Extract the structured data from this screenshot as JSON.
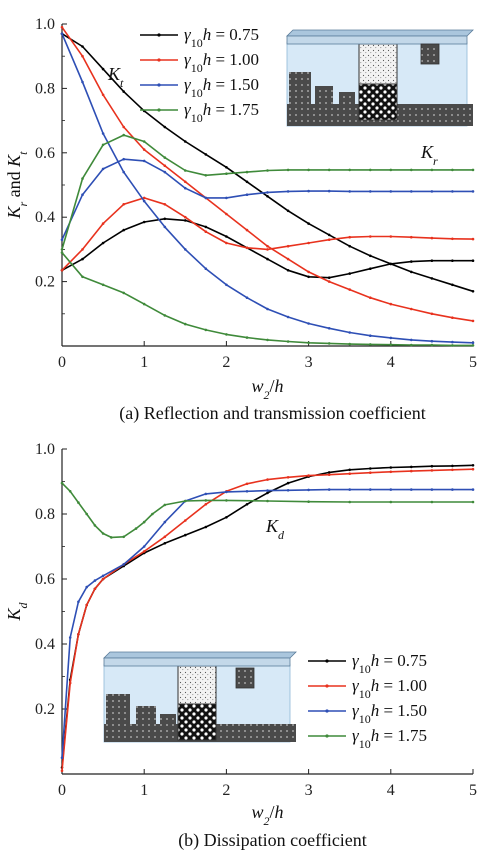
{
  "chart_data": [
    {
      "type": "line",
      "caption": "(a) Reflection and transmission coefficient",
      "xlabel": "w2/h",
      "ylabel": "Kr and Kt",
      "xlim": [
        0,
        5
      ],
      "ylim": [
        0,
        1.0
      ],
      "xticks": [
        "0",
        "1",
        "2",
        "3",
        "4",
        "5"
      ],
      "yticks": [
        "0.2",
        "0.4",
        "0.6",
        "0.8",
        "1.0"
      ],
      "legend": {
        "placement": "top-center"
      },
      "annotations": [
        "Kt",
        "Kr"
      ],
      "series": [
        {
          "name": "γ10h = 0.75",
          "color": "#000000",
          "kr": [
            [
              0,
              0.235
            ],
            [
              0.25,
              0.27
            ],
            [
              0.5,
              0.32
            ],
            [
              0.75,
              0.36
            ],
            [
              1.0,
              0.385
            ],
            [
              1.25,
              0.395
            ],
            [
              1.5,
              0.39
            ],
            [
              1.75,
              0.37
            ],
            [
              2.0,
              0.34
            ],
            [
              2.25,
              0.305
            ],
            [
              2.5,
              0.27
            ],
            [
              2.75,
              0.235
            ],
            [
              3.0,
              0.215
            ],
            [
              3.25,
              0.212
            ],
            [
              3.5,
              0.225
            ],
            [
              3.75,
              0.24
            ],
            [
              4.0,
              0.255
            ],
            [
              4.25,
              0.262
            ],
            [
              4.5,
              0.265
            ],
            [
              4.75,
              0.265
            ],
            [
              5.0,
              0.265
            ]
          ],
          "kt": [
            [
              0,
              0.97
            ],
            [
              0.25,
              0.93
            ],
            [
              0.5,
              0.86
            ],
            [
              0.75,
              0.79
            ],
            [
              1.0,
              0.73
            ],
            [
              1.25,
              0.68
            ],
            [
              1.5,
              0.635
            ],
            [
              1.75,
              0.595
            ],
            [
              2.0,
              0.555
            ],
            [
              2.25,
              0.51
            ],
            [
              2.5,
              0.465
            ],
            [
              2.75,
              0.42
            ],
            [
              3.0,
              0.38
            ],
            [
              3.25,
              0.345
            ],
            [
              3.5,
              0.31
            ],
            [
              3.75,
              0.28
            ],
            [
              4.0,
              0.255
            ],
            [
              4.25,
              0.23
            ],
            [
              4.5,
              0.21
            ],
            [
              4.75,
              0.19
            ],
            [
              5.0,
              0.17
            ]
          ]
        },
        {
          "name": "γ10h = 1.00",
          "color": "#e8321e",
          "kr": [
            [
              0,
              0.235
            ],
            [
              0.25,
              0.3
            ],
            [
              0.5,
              0.38
            ],
            [
              0.75,
              0.44
            ],
            [
              1.0,
              0.46
            ],
            [
              1.25,
              0.44
            ],
            [
              1.5,
              0.4
            ],
            [
              1.75,
              0.355
            ],
            [
              2.0,
              0.32
            ],
            [
              2.25,
              0.305
            ],
            [
              2.5,
              0.3
            ],
            [
              2.75,
              0.31
            ],
            [
              3.0,
              0.32
            ],
            [
              3.25,
              0.33
            ],
            [
              3.5,
              0.338
            ],
            [
              3.75,
              0.34
            ],
            [
              4.0,
              0.34
            ],
            [
              4.25,
              0.338
            ],
            [
              4.5,
              0.335
            ],
            [
              4.75,
              0.333
            ],
            [
              5.0,
              0.332
            ]
          ],
          "kt": [
            [
              0,
              0.99
            ],
            [
              0.25,
              0.9
            ],
            [
              0.5,
              0.78
            ],
            [
              0.75,
              0.68
            ],
            [
              1.0,
              0.61
            ],
            [
              1.25,
              0.56
            ],
            [
              1.5,
              0.51
            ],
            [
              1.75,
              0.46
            ],
            [
              2.0,
              0.41
            ],
            [
              2.25,
              0.36
            ],
            [
              2.5,
              0.31
            ],
            [
              2.75,
              0.27
            ],
            [
              3.0,
              0.23
            ],
            [
              3.25,
              0.2
            ],
            [
              3.5,
              0.175
            ],
            [
              3.75,
              0.15
            ],
            [
              4.0,
              0.13
            ],
            [
              4.25,
              0.115
            ],
            [
              4.5,
              0.1
            ],
            [
              4.75,
              0.088
            ],
            [
              5.0,
              0.078
            ]
          ]
        },
        {
          "name": "γ10h = 1.50",
          "color": "#2e4fb5",
          "kr": [
            [
              0,
              0.33
            ],
            [
              0.25,
              0.47
            ],
            [
              0.5,
              0.55
            ],
            [
              0.75,
              0.58
            ],
            [
              1.0,
              0.575
            ],
            [
              1.25,
              0.54
            ],
            [
              1.5,
              0.49
            ],
            [
              1.75,
              0.46
            ],
            [
              2.0,
              0.46
            ],
            [
              2.25,
              0.47
            ],
            [
              2.5,
              0.477
            ],
            [
              2.75,
              0.48
            ],
            [
              3.0,
              0.481
            ],
            [
              3.25,
              0.481
            ],
            [
              3.5,
              0.48
            ],
            [
              3.75,
              0.48
            ],
            [
              4.0,
              0.48
            ],
            [
              4.25,
              0.48
            ],
            [
              4.5,
              0.48
            ],
            [
              4.75,
              0.48
            ],
            [
              5.0,
              0.48
            ]
          ],
          "kt": [
            [
              0,
              0.97
            ],
            [
              0.25,
              0.82
            ],
            [
              0.5,
              0.66
            ],
            [
              0.75,
              0.54
            ],
            [
              1.0,
              0.45
            ],
            [
              1.25,
              0.37
            ],
            [
              1.5,
              0.3
            ],
            [
              1.75,
              0.24
            ],
            [
              2.0,
              0.19
            ],
            [
              2.25,
              0.15
            ],
            [
              2.5,
              0.115
            ],
            [
              2.75,
              0.09
            ],
            [
              3.0,
              0.07
            ],
            [
              3.25,
              0.055
            ],
            [
              3.5,
              0.042
            ],
            [
              3.75,
              0.032
            ],
            [
              4.0,
              0.025
            ],
            [
              4.25,
              0.019
            ],
            [
              4.5,
              0.015
            ],
            [
              4.75,
              0.012
            ],
            [
              5.0,
              0.01
            ]
          ]
        },
        {
          "name": "γ10h = 1.75",
          "color": "#3f8a3a",
          "kr": [
            [
              0,
              0.3
            ],
            [
              0.25,
              0.52
            ],
            [
              0.5,
              0.625
            ],
            [
              0.75,
              0.655
            ],
            [
              1.0,
              0.635
            ],
            [
              1.25,
              0.585
            ],
            [
              1.5,
              0.545
            ],
            [
              1.75,
              0.53
            ],
            [
              2.0,
              0.535
            ],
            [
              2.25,
              0.54
            ],
            [
              2.5,
              0.545
            ],
            [
              2.75,
              0.547
            ],
            [
              3.0,
              0.547
            ],
            [
              3.25,
              0.547
            ],
            [
              3.5,
              0.547
            ],
            [
              3.75,
              0.547
            ],
            [
              4.0,
              0.547
            ],
            [
              4.25,
              0.547
            ],
            [
              4.5,
              0.547
            ],
            [
              4.75,
              0.547
            ],
            [
              5.0,
              0.547
            ]
          ],
          "kt": [
            [
              0,
              0.29
            ],
            [
              0.25,
              0.215
            ],
            [
              0.5,
              0.19
            ],
            [
              0.75,
              0.165
            ],
            [
              1.0,
              0.13
            ],
            [
              1.25,
              0.095
            ],
            [
              1.5,
              0.068
            ],
            [
              1.75,
              0.05
            ],
            [
              2.0,
              0.036
            ],
            [
              2.25,
              0.026
            ],
            [
              2.5,
              0.019
            ],
            [
              2.75,
              0.014
            ],
            [
              3.0,
              0.01
            ],
            [
              3.25,
              0.008
            ],
            [
              3.5,
              0.006
            ],
            [
              3.75,
              0.005
            ],
            [
              4.0,
              0.004
            ],
            [
              4.25,
              0.003
            ],
            [
              4.5,
              0.003
            ],
            [
              4.75,
              0.002
            ],
            [
              5.0,
              0.002
            ]
          ]
        }
      ]
    },
    {
      "type": "line",
      "caption": "(b) Dissipation coefficient",
      "xlabel": "w2/h",
      "ylabel": "Kd",
      "xlim": [
        0,
        5
      ],
      "ylim": [
        0,
        1.0
      ],
      "xticks": [
        "0",
        "1",
        "2",
        "3",
        "4",
        "5"
      ],
      "yticks": [
        "0.2",
        "0.4",
        "0.6",
        "0.8",
        "1.0"
      ],
      "legend": {
        "placement": "bottom-right"
      },
      "annotations": [
        "Kd"
      ],
      "series": [
        {
          "name": "γ10h = 0.75",
          "color": "#000000",
          "kd": [
            [
              0,
              0.02
            ],
            [
              0.1,
              0.29
            ],
            [
              0.2,
              0.43
            ],
            [
              0.3,
              0.52
            ],
            [
              0.4,
              0.57
            ],
            [
              0.5,
              0.6
            ],
            [
              0.75,
              0.64
            ],
            [
              1.0,
              0.68
            ],
            [
              1.25,
              0.71
            ],
            [
              1.5,
              0.735
            ],
            [
              1.75,
              0.76
            ],
            [
              2.0,
              0.79
            ],
            [
              2.25,
              0.83
            ],
            [
              2.5,
              0.865
            ],
            [
              2.75,
              0.895
            ],
            [
              3.0,
              0.915
            ],
            [
              3.25,
              0.928
            ],
            [
              3.5,
              0.936
            ],
            [
              3.75,
              0.94
            ],
            [
              4.0,
              0.943
            ],
            [
              4.25,
              0.945
            ],
            [
              4.5,
              0.947
            ],
            [
              4.75,
              0.948
            ],
            [
              5.0,
              0.95
            ]
          ]
        },
        {
          "name": "γ10h = 1.00",
          "color": "#e8321e",
          "kd": [
            [
              0,
              0.01
            ],
            [
              0.1,
              0.28
            ],
            [
              0.2,
              0.43
            ],
            [
              0.3,
              0.52
            ],
            [
              0.4,
              0.57
            ],
            [
              0.5,
              0.6
            ],
            [
              0.75,
              0.645
            ],
            [
              1.0,
              0.685
            ],
            [
              1.25,
              0.73
            ],
            [
              1.5,
              0.78
            ],
            [
              1.75,
              0.83
            ],
            [
              2.0,
              0.87
            ],
            [
              2.25,
              0.893
            ],
            [
              2.5,
              0.906
            ],
            [
              2.75,
              0.913
            ],
            [
              3.0,
              0.918
            ],
            [
              3.25,
              0.921
            ],
            [
              3.5,
              0.924
            ],
            [
              3.75,
              0.927
            ],
            [
              4.0,
              0.93
            ],
            [
              4.25,
              0.932
            ],
            [
              4.5,
              0.934
            ],
            [
              4.75,
              0.936
            ],
            [
              5.0,
              0.938
            ]
          ]
        },
        {
          "name": "γ10h = 1.50",
          "color": "#2e4fb5",
          "kd": [
            [
              0,
              0.05
            ],
            [
              0.1,
              0.42
            ],
            [
              0.2,
              0.53
            ],
            [
              0.3,
              0.575
            ],
            [
              0.4,
              0.595
            ],
            [
              0.5,
              0.61
            ],
            [
              0.75,
              0.645
            ],
            [
              1.0,
              0.7
            ],
            [
              1.25,
              0.775
            ],
            [
              1.5,
              0.84
            ],
            [
              1.75,
              0.862
            ],
            [
              2.0,
              0.868
            ],
            [
              2.25,
              0.87
            ],
            [
              2.5,
              0.872
            ],
            [
              2.75,
              0.873
            ],
            [
              3.0,
              0.874
            ],
            [
              3.25,
              0.875
            ],
            [
              3.5,
              0.875
            ],
            [
              3.75,
              0.875
            ],
            [
              4.0,
              0.875
            ],
            [
              4.25,
              0.875
            ],
            [
              4.5,
              0.875
            ],
            [
              4.75,
              0.875
            ],
            [
              5.0,
              0.875
            ]
          ]
        },
        {
          "name": "γ10h = 1.75",
          "color": "#3f8a3a",
          "kd": [
            [
              0,
              0.895
            ],
            [
              0.1,
              0.87
            ],
            [
              0.2,
              0.835
            ],
            [
              0.3,
              0.8
            ],
            [
              0.4,
              0.765
            ],
            [
              0.5,
              0.74
            ],
            [
              0.6,
              0.728
            ],
            [
              0.75,
              0.73
            ],
            [
              0.9,
              0.755
            ],
            [
              1.0,
              0.775
            ],
            [
              1.1,
              0.8
            ],
            [
              1.25,
              0.828
            ],
            [
              1.5,
              0.84
            ],
            [
              1.75,
              0.842
            ],
            [
              2.0,
              0.842
            ],
            [
              2.5,
              0.84
            ],
            [
              3.0,
              0.838
            ],
            [
              3.5,
              0.837
            ],
            [
              4.0,
              0.837
            ],
            [
              4.5,
              0.837
            ],
            [
              5.0,
              0.837
            ]
          ]
        }
      ]
    }
  ]
}
